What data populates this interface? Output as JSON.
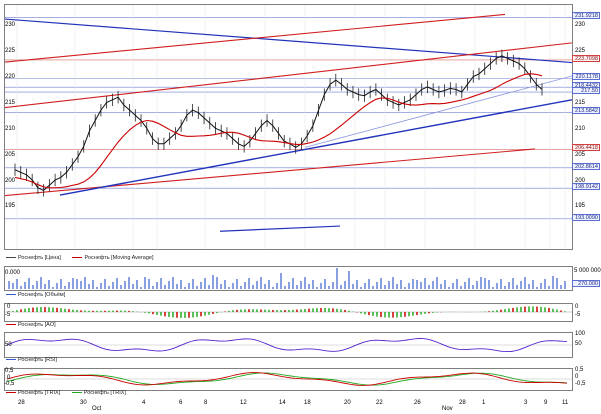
{
  "main": {
    "left_ticks": [
      "230",
      "225",
      "220",
      "215",
      "210",
      "205",
      "200",
      "195"
    ],
    "right_ticks": [
      "230",
      "225",
      "220",
      "215",
      "210",
      "205",
      "200",
      "195"
    ],
    "price_tags": [
      {
        "label": "231.9218",
        "color": "blue"
      },
      {
        "label": "223.7098",
        "color": "red"
      },
      {
        "label": "220.1178",
        "color": "blue"
      },
      {
        "label": "218.4432",
        "color": "blue"
      },
      {
        "label": "217.50",
        "color": "blue"
      },
      {
        "label": "213.5842",
        "color": "blue"
      },
      {
        "label": "206.4418",
        "color": "red"
      },
      {
        "label": "202.8614",
        "color": "blue"
      },
      {
        "label": "198.9142",
        "color": "blue"
      },
      {
        "label": "193.0090",
        "color": "blue"
      }
    ],
    "legend": [
      {
        "label": "Роснефть [Цена]",
        "color": "#444444"
      },
      {
        "label": "Роснефть [Moving Average]",
        "color": "#cc0000"
      }
    ]
  },
  "volume": {
    "left_tick": "0.000",
    "right_tick": "5 000 000",
    "value_tag": "270.000",
    "legend": [
      {
        "label": "Роснефть [Объём]",
        "color": "#3a5fcd"
      }
    ]
  },
  "ao": {
    "left_ticks": [
      "0",
      "-5"
    ],
    "right_ticks": [
      "0",
      "-5"
    ],
    "legend": [
      {
        "label": "Роснефть [AO]",
        "color": "#cc0000"
      }
    ]
  },
  "rsi": {
    "left_ticks": [
      "50"
    ],
    "right_ticks": [
      "100",
      "50"
    ],
    "legend": [
      {
        "label": "Роснефть [RSI]",
        "color": "#3a5fcd"
      }
    ]
  },
  "trix": {
    "left_ticks": [
      "0,5",
      "0",
      "-0,5"
    ],
    "right_ticks": [
      "0,5",
      "0",
      "-0,5"
    ],
    "legend": [
      {
        "label": "Роснефть [TRIX]",
        "color": "#cc0000"
      },
      {
        "label": "Роснефть [TRIX]",
        "color": "#22aa22"
      }
    ]
  },
  "x_axis": {
    "days": [
      "28",
      "30",
      "4",
      "6",
      "8",
      "12",
      "14",
      "18",
      "20",
      "22",
      "26",
      "28",
      "1",
      "3",
      "9",
      "11"
    ],
    "months": [
      "Oct",
      "Nov"
    ]
  }
}
